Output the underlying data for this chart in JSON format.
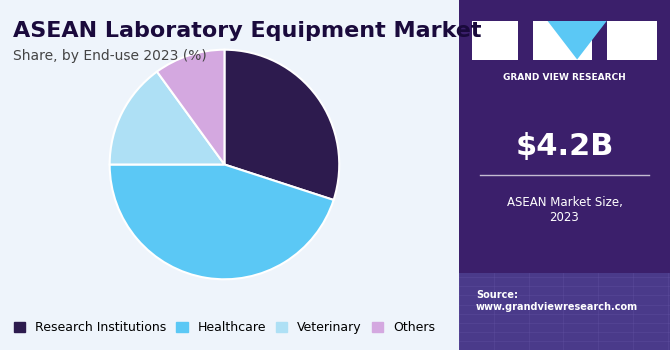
{
  "title": "ASEAN Laboratory Equipment Market",
  "subtitle": "Share, by End-use 2023 (%)",
  "slices": [
    {
      "label": "Research Institutions",
      "value": 30,
      "color": "#2d1b4e"
    },
    {
      "label": "Healthcare",
      "value": 45,
      "color": "#5bc8f5"
    },
    {
      "label": "Veterinary",
      "value": 15,
      "color": "#aee0f5"
    },
    {
      "label": "Others",
      "value": 10,
      "color": "#d4a8e0"
    }
  ],
  "start_angle": 90,
  "bg_color": "#eef4fb",
  "right_panel_color": "#3b1f6b",
  "right_panel_bottom_color": "#4a3a8a",
  "market_size": "$4.2B",
  "market_label": "ASEAN Market Size,\n2023",
  "source_text": "Source:\nwww.grandviewresearch.com",
  "logo_text": "GRAND VIEW RESEARCH",
  "title_fontsize": 16,
  "subtitle_fontsize": 10,
  "legend_fontsize": 9
}
